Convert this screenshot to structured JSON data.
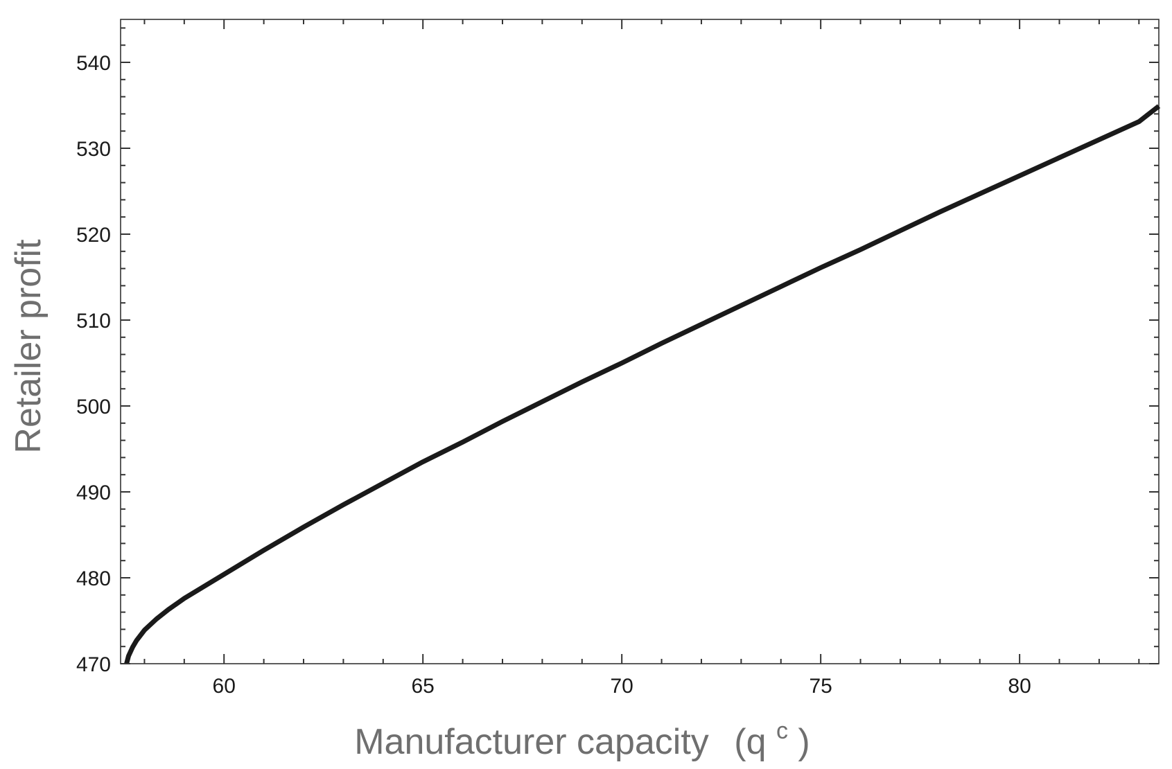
{
  "chart_data": {
    "type": "line",
    "title": "",
    "xlabel": "Manufacturer capacity",
    "xlabel_symbol": "(q",
    "xlabel_superscript": "c",
    "xlabel_close": ")",
    "ylabel": "Retailer profit",
    "xlim": [
      57.4,
      83.5
    ],
    "ylim": [
      470,
      545
    ],
    "x_ticks": [
      60,
      65,
      70,
      75,
      80
    ],
    "y_ticks": [
      470,
      480,
      490,
      500,
      510,
      520,
      530,
      540
    ],
    "x_minor_step": 1,
    "y_minor_step": 2,
    "grid": false,
    "legend": "none",
    "line_color": "#1a1a1a",
    "frame_color": "#333333",
    "series": [
      {
        "x": [
          57.55,
          57.6,
          57.7,
          57.8,
          58.0,
          58.3,
          58.6,
          59.0,
          59.5,
          60.0,
          61.0,
          62.0,
          63.0,
          64.0,
          65.0,
          66.0,
          67.0,
          68.0,
          69.0,
          70.0,
          71.0,
          72.0,
          73.0,
          74.0,
          75.0,
          76.0,
          77.0,
          78.0,
          79.0,
          80.0,
          81.0,
          82.0,
          83.0,
          83.5
        ],
        "y": [
          470.0,
          470.9,
          471.9,
          472.7,
          473.9,
          475.2,
          476.3,
          477.6,
          479.0,
          480.4,
          483.2,
          485.9,
          488.5,
          491.0,
          493.5,
          495.8,
          498.2,
          500.5,
          502.8,
          505.0,
          507.3,
          509.5,
          511.7,
          513.9,
          516.1,
          518.2,
          520.4,
          522.6,
          524.7,
          526.8,
          528.9,
          531.0,
          533.1,
          534.9
        ]
      }
    ]
  }
}
